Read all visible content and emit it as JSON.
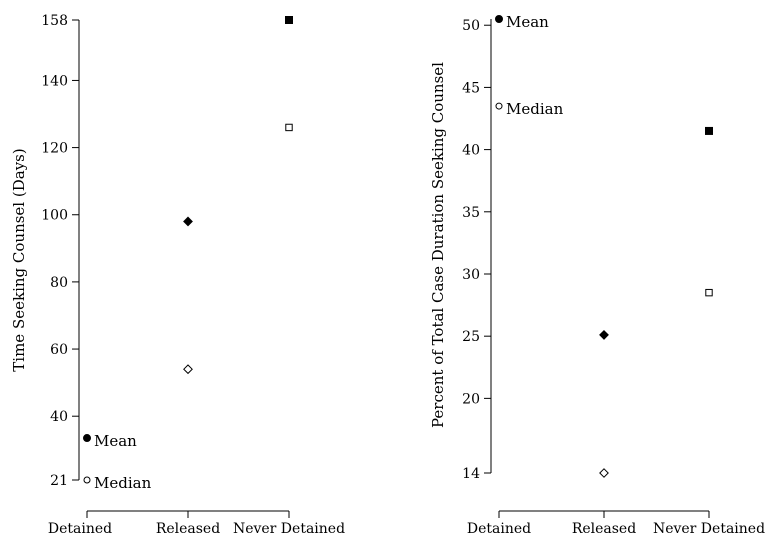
{
  "chart_data": [
    {
      "type": "scatter",
      "title": "",
      "xlabel": "",
      "ylabel": "Time Seeking Counsel (Days)",
      "categories": [
        "Detained",
        "Released",
        "Never Detained"
      ],
      "y_ticks": [
        21,
        40,
        60,
        80,
        100,
        120,
        140,
        158
      ],
      "ylim": [
        21,
        158
      ],
      "grid": false,
      "series": [
        {
          "name": "Mean",
          "marker": "filled",
          "values": [
            33.5,
            98,
            158
          ]
        },
        {
          "name": "Median",
          "marker": "hollow",
          "values": [
            21,
            54,
            126
          ]
        }
      ],
      "markers": [
        "circle",
        "diamond",
        "square"
      ],
      "legend_mode": "labels-next-to-first-points"
    },
    {
      "type": "scatter",
      "title": "",
      "xlabel": "",
      "ylabel": "Percent of Total Case Duration Seeking Counsel",
      "categories": [
        "Detained",
        "Released",
        "Never Detained"
      ],
      "y_ticks": [
        14,
        20,
        25,
        30,
        35,
        40,
        45,
        50
      ],
      "ylim": [
        14,
        50.5
      ],
      "grid": false,
      "series": [
        {
          "name": "Mean",
          "marker": "filled",
          "values": [
            50.5,
            25.1,
            41.5
          ]
        },
        {
          "name": "Median",
          "marker": "hollow",
          "values": [
            43.5,
            14,
            28.5
          ]
        }
      ],
      "markers": [
        "circle",
        "diamond",
        "square"
      ],
      "legend_mode": "labels-next-to-first-points"
    }
  ]
}
